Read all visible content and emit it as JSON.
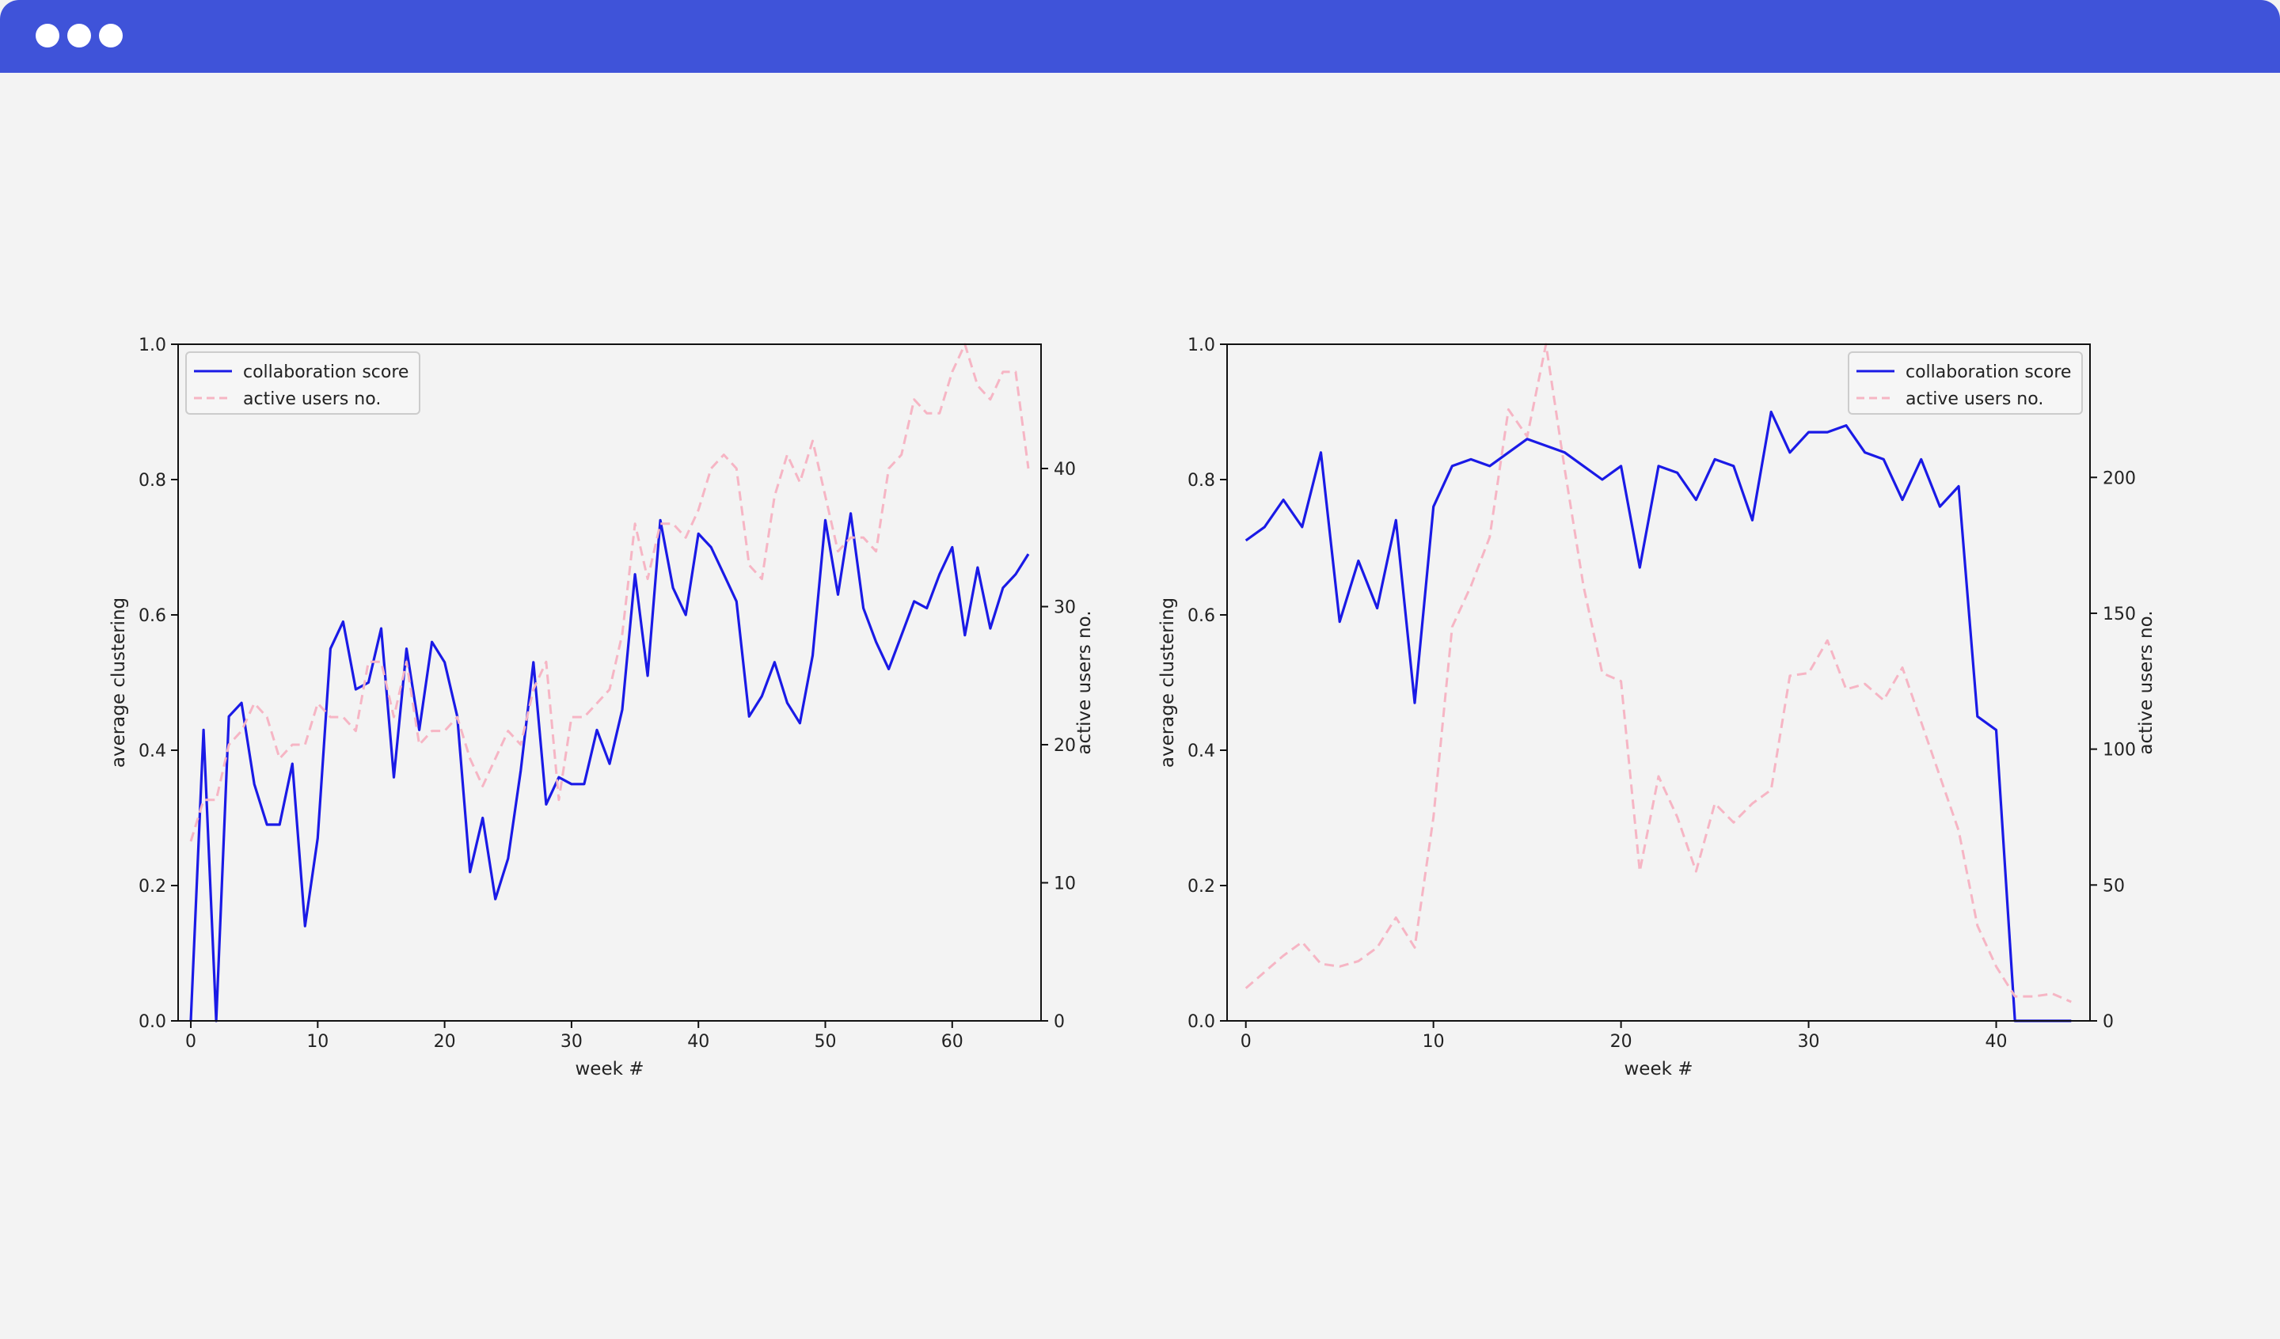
{
  "window": {
    "title_controls": [
      "dot",
      "dot",
      "dot"
    ],
    "titlebar_color": "#3f53d9",
    "background_color": "#f3f3f3"
  },
  "chart_data": [
    {
      "type": "line",
      "xlabel": "week #",
      "ylabel": "average clustering",
      "y2label": "active users no.",
      "xlim": [
        -1,
        67
      ],
      "ylim": [
        0,
        1.0
      ],
      "y2lim": [
        0,
        49
      ],
      "xticks": [
        0,
        10,
        20,
        30,
        40,
        50,
        60
      ],
      "yticks": [
        "0.0",
        "0.2",
        "0.4",
        "0.6",
        "0.8",
        "1.0"
      ],
      "y2ticks": [
        0,
        10,
        20,
        30,
        40
      ],
      "legend_position": "top-left",
      "series": [
        {
          "name": "collaboration score",
          "axis": "left",
          "color": "#1a1ae6",
          "style": "solid",
          "x": [
            0,
            1,
            2,
            3,
            4,
            5,
            6,
            7,
            8,
            9,
            10,
            11,
            12,
            13,
            14,
            15,
            16,
            17,
            18,
            19,
            20,
            21,
            22,
            23,
            24,
            25,
            26,
            27,
            28,
            29,
            30,
            31,
            32,
            33,
            34,
            35,
            36,
            37,
            38,
            39,
            40,
            41,
            42,
            43,
            44,
            45,
            46,
            47,
            48,
            49,
            50,
            51,
            52,
            53,
            54,
            55,
            56,
            57,
            58,
            59,
            60,
            61,
            62,
            63,
            64,
            65,
            66
          ],
          "y": [
            0,
            0.43,
            0,
            0.45,
            0.47,
            0.35,
            0.29,
            0.29,
            0.38,
            0.14,
            0.27,
            0.55,
            0.59,
            0.49,
            0.5,
            0.58,
            0.36,
            0.55,
            0.43,
            0.56,
            0.53,
            0.45,
            0.22,
            0.3,
            0.18,
            0.24,
            0.37,
            0.53,
            0.32,
            0.36,
            0.35,
            0.35,
            0.43,
            0.38,
            0.46,
            0.66,
            0.51,
            0.74,
            0.64,
            0.6,
            0.72,
            0.7,
            0.66,
            0.62,
            0.45,
            0.48,
            0.53,
            0.47,
            0.44,
            0.54,
            0.74,
            0.63,
            0.75,
            0.61,
            0.56,
            0.52,
            0.57,
            0.62,
            0.61,
            0.66,
            0.7,
            0.57,
            0.67,
            0.58,
            0.64,
            0.66,
            0.69
          ]
        },
        {
          "name": "active users no.",
          "axis": "right",
          "color": "#f6b5c4",
          "style": "dashed",
          "x": [
            0,
            1,
            2,
            3,
            4,
            5,
            6,
            7,
            8,
            9,
            10,
            11,
            12,
            13,
            14,
            15,
            16,
            17,
            18,
            19,
            20,
            21,
            22,
            23,
            24,
            25,
            26,
            27,
            28,
            29,
            30,
            31,
            32,
            33,
            34,
            35,
            36,
            37,
            38,
            39,
            40,
            41,
            42,
            43,
            44,
            45,
            46,
            47,
            48,
            49,
            50,
            51,
            52,
            53,
            54,
            55,
            56,
            57,
            58,
            59,
            60,
            61,
            62,
            63,
            64,
            65,
            66
          ],
          "y": [
            13,
            16,
            16,
            20,
            21,
            23,
            22,
            19,
            20,
            20,
            23,
            22,
            22,
            21,
            26,
            26,
            22,
            26,
            20,
            21,
            21,
            22,
            19,
            17,
            19,
            21,
            20,
            24,
            26,
            16,
            22,
            22,
            23,
            24,
            28,
            36,
            32,
            36,
            36,
            35,
            37,
            40,
            41,
            40,
            33,
            32,
            38,
            41,
            39,
            42,
            38,
            34,
            35,
            35,
            34,
            40,
            41,
            45,
            44,
            44,
            47,
            49,
            46,
            45,
            47,
            47,
            40
          ]
        }
      ]
    },
    {
      "type": "line",
      "xlabel": "week #",
      "ylabel": "average clustering",
      "y2label": "active users no.",
      "xlim": [
        -1,
        45
      ],
      "ylim": [
        0,
        1.0
      ],
      "y2lim": [
        0,
        249
      ],
      "xticks": [
        0,
        10,
        20,
        30,
        40
      ],
      "yticks": [
        "0.0",
        "0.2",
        "0.4",
        "0.6",
        "0.8",
        "1.0"
      ],
      "y2ticks": [
        0,
        50,
        100,
        150,
        200
      ],
      "legend_position": "top-right",
      "series": [
        {
          "name": "collaboration score",
          "axis": "left",
          "color": "#1a1ae6",
          "style": "solid",
          "x": [
            0,
            1,
            2,
            3,
            4,
            5,
            6,
            7,
            8,
            9,
            10,
            11,
            12,
            13,
            14,
            15,
            16,
            17,
            18,
            19,
            20,
            21,
            22,
            23,
            24,
            25,
            26,
            27,
            28,
            29,
            30,
            31,
            32,
            33,
            34,
            35,
            36,
            37,
            38,
            39,
            40,
            41,
            42,
            43,
            44
          ],
          "y": [
            0.71,
            0.73,
            0.77,
            0.73,
            0.84,
            0.59,
            0.68,
            0.61,
            0.74,
            0.47,
            0.76,
            0.82,
            0.83,
            0.82,
            0.84,
            0.86,
            0.85,
            0.84,
            0.82,
            0.8,
            0.82,
            0.67,
            0.82,
            0.81,
            0.77,
            0.83,
            0.82,
            0.74,
            0.9,
            0.84,
            0.87,
            0.87,
            0.88,
            0.84,
            0.83,
            0.77,
            0.83,
            0.76,
            0.79,
            0.45,
            0.43,
            0,
            0,
            0,
            0
          ]
        },
        {
          "name": "active users no.",
          "axis": "right",
          "color": "#f6b5c4",
          "style": "dashed",
          "x": [
            0,
            1,
            2,
            3,
            4,
            5,
            6,
            7,
            8,
            9,
            10,
            11,
            12,
            13,
            14,
            15,
            16,
            17,
            18,
            19,
            20,
            21,
            22,
            23,
            24,
            25,
            26,
            27,
            28,
            29,
            30,
            31,
            32,
            33,
            34,
            35,
            36,
            37,
            38,
            39,
            40,
            41,
            42,
            43,
            44
          ],
          "y": [
            12,
            18,
            24,
            29,
            21,
            20,
            22,
            27,
            38,
            27,
            75,
            145,
            160,
            178,
            225,
            215,
            249,
            203,
            160,
            128,
            125,
            55,
            90,
            75,
            55,
            80,
            73,
            80,
            85,
            127,
            128,
            140,
            122,
            124,
            118,
            130,
            110,
            90,
            70,
            35,
            20,
            9,
            9,
            10,
            7
          ]
        }
      ]
    }
  ]
}
